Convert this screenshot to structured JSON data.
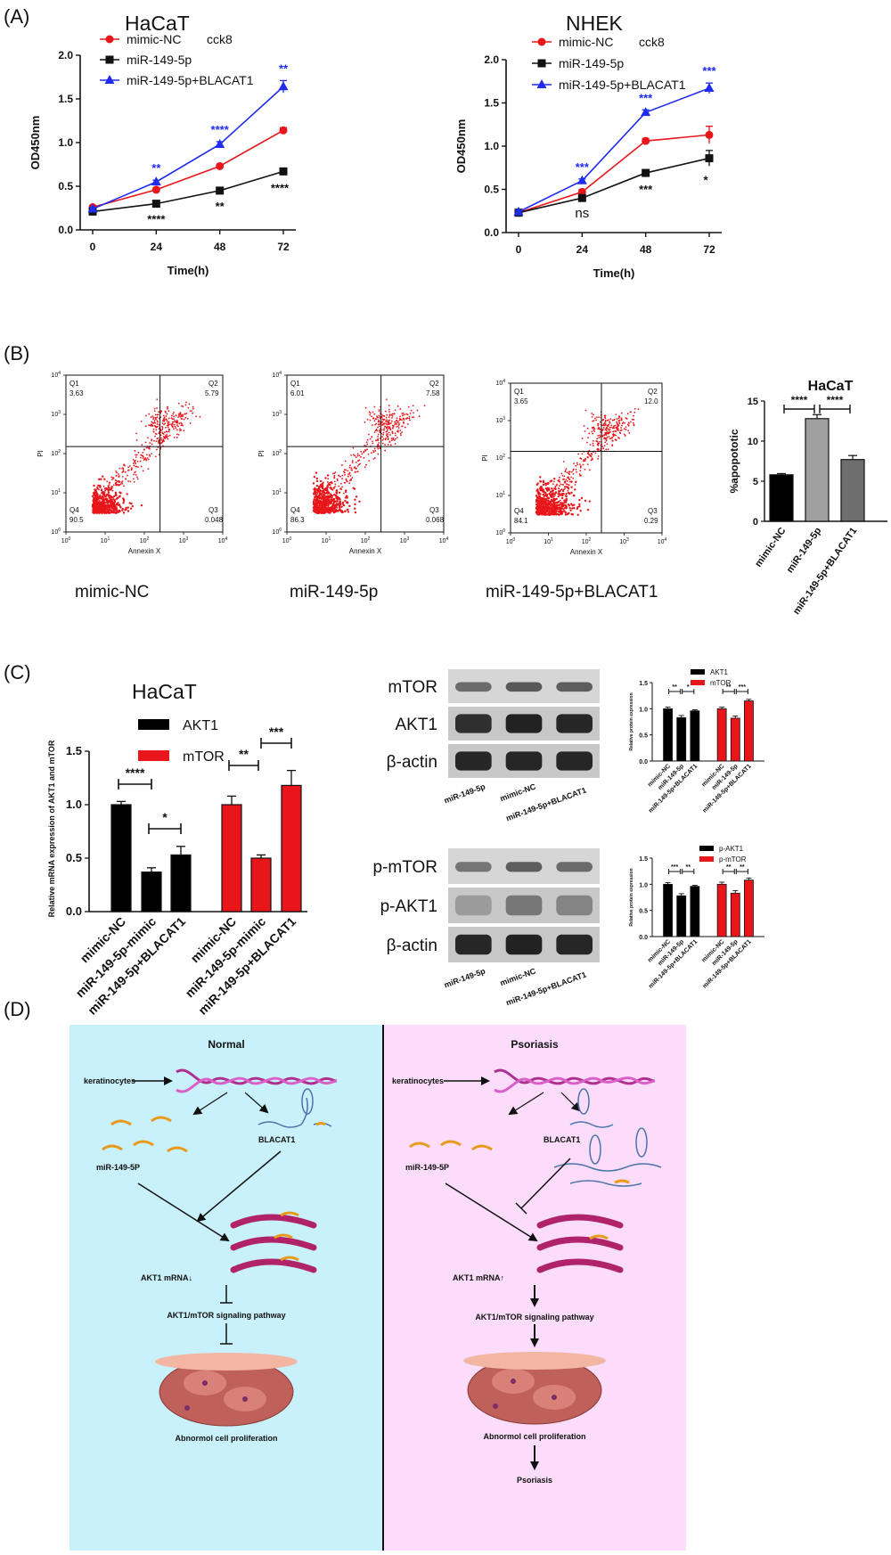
{
  "panels": {
    "A": "(A)",
    "B": "(B)",
    "C": "(C)",
    "D": "(D)"
  },
  "colors": {
    "nc": "#e8161b",
    "mir": "#111111",
    "blacat": "#1f2cf0",
    "bar_nc": "#000000",
    "bar_mir": "#a0a0a0",
    "bar_bl": "#6e6e6e",
    "normal_bg": "#c9f1fb",
    "psoriasis_bg": "#fbdcfb"
  },
  "panel_a": {
    "x": [
      0,
      24,
      48,
      72
    ],
    "xlabel": "Time(h)",
    "ylabel": "OD450nm",
    "ylim": [
      0,
      2.0
    ],
    "yticks": [
      "0.0",
      "0.5",
      "1.0",
      "1.5",
      "2.0"
    ],
    "legend": [
      "mimic-NC",
      "miR-149-5p",
      "miR-149-5p+BLACAT1"
    ],
    "legend_extra": "cck8",
    "charts": [
      {
        "title": "HaCaT",
        "series": [
          {
            "name": "mimic-NC",
            "values": [
              0.26,
              0.46,
              0.73,
              1.14
            ],
            "err": [
              0.02,
              0.02,
              0.02,
              0.03
            ]
          },
          {
            "name": "miR-149-5p",
            "values": [
              0.21,
              0.3,
              0.45,
              0.67
            ],
            "err": [
              0.02,
              0.02,
              0.02,
              0.03
            ]
          },
          {
            "name": "miR-149-5p+BLACAT1",
            "values": [
              0.24,
              0.55,
              0.98,
              1.64
            ],
            "err": [
              0.02,
              0.02,
              0.03,
              0.07
            ]
          }
        ],
        "sig_blue": [
          "",
          "**",
          "****",
          "**"
        ],
        "sig_black": [
          "",
          "****",
          "**",
          "****"
        ]
      },
      {
        "title": "NHEK",
        "series": [
          {
            "name": "mimic-NC",
            "values": [
              0.23,
              0.47,
              1.06,
              1.13
            ],
            "err": [
              0.02,
              0.03,
              0.03,
              0.1
            ]
          },
          {
            "name": "miR-149-5p",
            "values": [
              0.23,
              0.4,
              0.69,
              0.86
            ],
            "err": [
              0.02,
              0.02,
              0.03,
              0.09
            ]
          },
          {
            "name": "miR-149-5p+BLACAT1",
            "values": [
              0.24,
              0.6,
              1.39,
              1.67
            ],
            "err": [
              0.02,
              0.02,
              0.03,
              0.06
            ]
          }
        ],
        "sig_blue": [
          "",
          "***",
          "***",
          "***"
        ],
        "sig_black": [
          "",
          "ns",
          "***",
          "*"
        ]
      }
    ]
  },
  "panel_b": {
    "flow": [
      {
        "label": "mimic-NC",
        "q1": "3.63",
        "q2": "5.79",
        "q3": "0.048",
        "q4": "90.5"
      },
      {
        "label": "miR-149-5p",
        "q1": "6.01",
        "q2": "7.58",
        "q3": "0.068",
        "q4": "86.3"
      },
      {
        "label": "miR-149-5p+BLACAT1",
        "q1": "3.65",
        "q2": "12.0",
        "q3": "0.29",
        "q4": "84.1"
      }
    ],
    "quad_names": [
      "Q1",
      "Q2",
      "Q3",
      "Q4"
    ],
    "flow_xlabel": "Annexin X",
    "flow_ylabel": "PI",
    "flow_ticks": [
      "0",
      "1",
      "2",
      "3",
      "4"
    ],
    "apoptosis": {
      "title": "HaCaT",
      "ylabel": "%apopototic",
      "categories": [
        "mimic-NC",
        "miR-149-5p",
        "miR-149-5p+BLACAT1"
      ],
      "values": [
        5.8,
        12.8,
        7.7
      ],
      "err": [
        0.15,
        0.5,
        0.5
      ],
      "ylim": [
        0,
        15
      ],
      "yticks": [
        "0",
        "5",
        "10",
        "15"
      ],
      "sig": [
        "****",
        "****"
      ]
    }
  },
  "panel_c": {
    "title": "HaCaT",
    "ylabel": "Relative mRNA expression of AKT1 and mTOR",
    "legend": [
      "AKT1",
      "mTOR"
    ],
    "categories": [
      "mimic-NC",
      "miR-149-5p-mimic",
      "miR-149-5p+BLACAT1"
    ],
    "ylim": [
      0,
      1.5
    ],
    "yticks": [
      "0.0",
      "0.5",
      "1.0",
      "1.5"
    ],
    "series": [
      {
        "name": "AKT1",
        "values": [
          1.0,
          0.37,
          0.53
        ],
        "err": [
          0.03,
          0.04,
          0.08
        ]
      },
      {
        "name": "mTOR",
        "values": [
          1.0,
          0.5,
          1.18
        ],
        "err": [
          0.08,
          0.03,
          0.14
        ]
      }
    ],
    "sig": {
      "akt_1": "****",
      "akt_2": "*",
      "mtor_1": "**",
      "mtor_2": "***"
    }
  },
  "blots": [
    {
      "rows": [
        "mTOR",
        "AKT1",
        "β-actin"
      ],
      "lanes": [
        "miR-149-5p",
        "mimic-NC",
        "miR-149-5p+BLACAT1"
      ],
      "chart": {
        "legend": [
          "AKT1",
          "mTOR"
        ],
        "ylabel": "Relative protein expression",
        "ylim": [
          0,
          1.5
        ],
        "yticks": [
          "0.0",
          "0.5",
          "1.0",
          "1.5"
        ],
        "categories": [
          "mimic-NC",
          "miR-149-5p",
          "miR-149-5p+BLACAT1"
        ],
        "series": [
          {
            "name": "AKT1",
            "values": [
              1.0,
              0.83,
              0.96
            ],
            "err": [
              0.03,
              0.04,
              0.02
            ]
          },
          {
            "name": "mTOR",
            "values": [
              1.0,
              0.82,
              1.15
            ],
            "err": [
              0.03,
              0.04,
              0.03
            ]
          }
        ],
        "sig": [
          "**",
          "*",
          "**",
          "***"
        ]
      }
    },
    {
      "rows": [
        "p-mTOR",
        "p-AKT1",
        "β-actin"
      ],
      "lanes": [
        "miR-149-5p",
        "mimic-NC",
        "miR-149-5p+BLACAT1"
      ],
      "chart": {
        "legend": [
          "p-AKT1",
          "p-mTOR"
        ],
        "ylabel": "Relative protein expression",
        "ylim": [
          0,
          1.5
        ],
        "yticks": [
          "0.0",
          "0.5",
          "1.0",
          "1.5"
        ],
        "categories": [
          "mimic-NC",
          "miR-149-5p",
          "miR-149-5p+BLACAT1"
        ],
        "series": [
          {
            "name": "p-AKT1",
            "values": [
              1.0,
              0.78,
              0.96
            ],
            "err": [
              0.03,
              0.04,
              0.02
            ]
          },
          {
            "name": "p-mTOR",
            "values": [
              1.0,
              0.83,
              1.08
            ],
            "err": [
              0.04,
              0.05,
              0.04
            ]
          }
        ],
        "sig": [
          "***",
          "**",
          "**",
          "**"
        ]
      }
    }
  ],
  "panel_d": {
    "normal": {
      "title": "Normal",
      "keratinocytes": "keratinocytes",
      "blacat": "BLACAT1",
      "mir": "miR-149-5P",
      "akt": "AKT1 mRNA↓",
      "pathway": "AKT1/mTOR signaling pathway",
      "cells": "Abnormol cell proliferation"
    },
    "psoriasis": {
      "title": "Psoriasis",
      "keratinocytes": "keratinocytes",
      "blacat": "BLACAT1",
      "mir": "miR-149-5P",
      "akt": "AKT1 mRNA↑",
      "pathway": "AKT1/mTOR signaling pathway",
      "cells": "Abnormol cell proliferation",
      "outcome": "Psoriasis"
    }
  }
}
